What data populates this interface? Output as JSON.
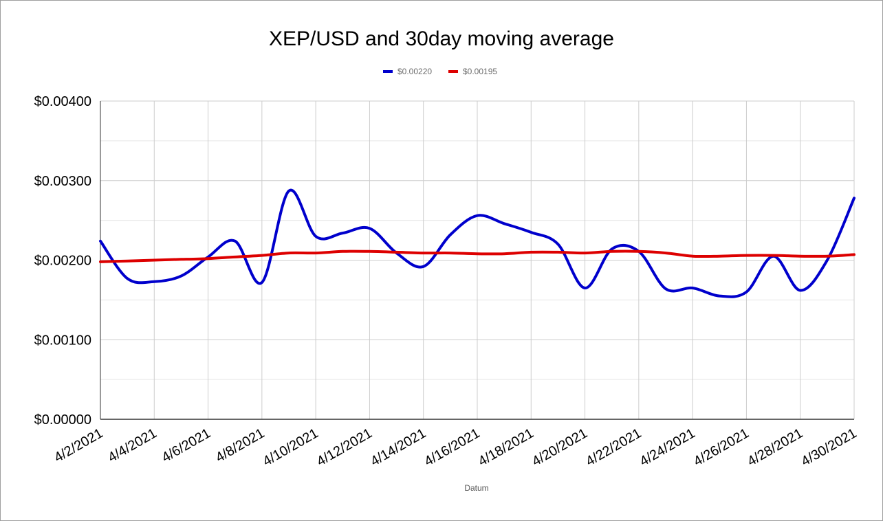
{
  "chart_data": {
    "type": "line",
    "title": "XEP/USD and 30day moving average",
    "xlabel": "Datum",
    "ylabel": "",
    "ylim": [
      0,
      0.004
    ],
    "yticks": [
      "$0.00000",
      "$0.00100",
      "$0.00200",
      "$0.00300",
      "$0.00400"
    ],
    "xticks": [
      "4/2/2021",
      "4/4/2021",
      "4/6/2021",
      "4/8/2021",
      "4/10/2021",
      "4/12/2021",
      "4/14/2021",
      "4/16/2021",
      "4/18/2021",
      "4/20/2021",
      "4/22/2021",
      "4/24/2021",
      "4/26/2021",
      "4/28/2021",
      "4/30/2021"
    ],
    "x": [
      "4/2/2021",
      "4/3/2021",
      "4/4/2021",
      "4/5/2021",
      "4/6/2021",
      "4/7/2021",
      "4/8/2021",
      "4/9/2021",
      "4/10/2021",
      "4/11/2021",
      "4/12/2021",
      "4/13/2021",
      "4/14/2021",
      "4/15/2021",
      "4/16/2021",
      "4/17/2021",
      "4/18/2021",
      "4/19/2021",
      "4/20/2021",
      "4/21/2021",
      "4/22/2021",
      "4/23/2021",
      "4/24/2021",
      "4/25/2021",
      "4/26/2021",
      "4/27/2021",
      "4/28/2021",
      "4/29/2021",
      "4/30/2021"
    ],
    "legend_position": "top",
    "grid": true,
    "series": [
      {
        "name": "$0.00220",
        "color": "#0000cc",
        "values": [
          0.00224,
          0.00177,
          0.00173,
          0.0018,
          0.00204,
          0.00224,
          0.00172,
          0.00287,
          0.0023,
          0.00234,
          0.0024,
          0.00209,
          0.00192,
          0.00232,
          0.00256,
          0.00246,
          0.00235,
          0.0022,
          0.00165,
          0.00214,
          0.00211,
          0.00164,
          0.00165,
          0.00155,
          0.0016,
          0.00205,
          0.00162,
          0.002,
          0.00278
        ]
      },
      {
        "name": "$0.00195",
        "color": "#dd0000",
        "values": [
          0.00198,
          0.00199,
          0.002,
          0.00201,
          0.00202,
          0.00204,
          0.00206,
          0.00209,
          0.00209,
          0.00211,
          0.00211,
          0.0021,
          0.00209,
          0.00209,
          0.00208,
          0.00208,
          0.0021,
          0.0021,
          0.00209,
          0.00211,
          0.00211,
          0.00209,
          0.00205,
          0.00205,
          0.00206,
          0.00206,
          0.00205,
          0.00205,
          0.00207
        ]
      }
    ]
  }
}
